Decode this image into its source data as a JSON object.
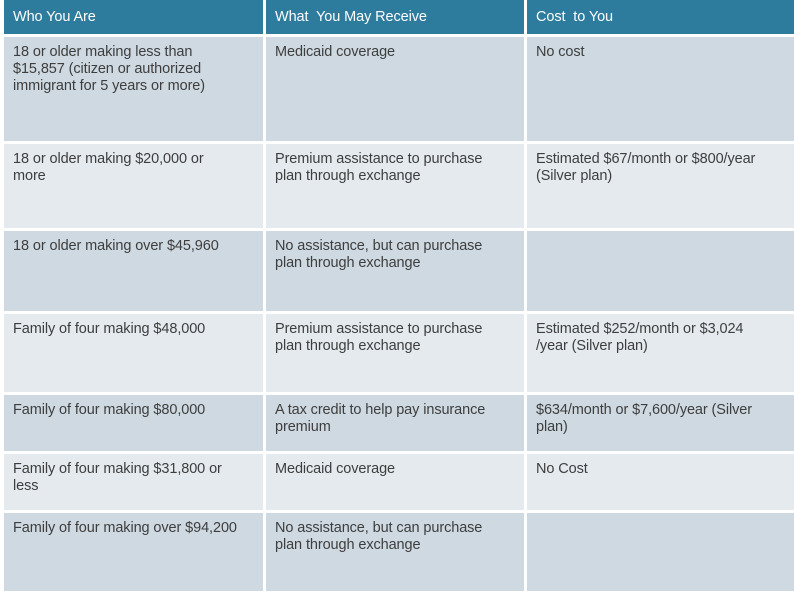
{
  "table": {
    "columns": [
      {
        "label": "Who You Are"
      },
      {
        "label": "What  You May Receive"
      },
      {
        "label": "Cost  to You"
      }
    ],
    "rows": [
      {
        "who": "18 or older making less than $15,857 (citizen or authorized immigrant for 5 years or more)",
        "receive": "Medicaid coverage",
        "cost": "No cost"
      },
      {
        "who": "18 or older making $20,000 or more",
        "receive": "Premium assistance to purchase plan through exchange",
        "cost": "Estimated $67/month or $800/year (Silver plan)"
      },
      {
        "who": "18 or older making over $45,960",
        "receive": "No assistance, but can purchase plan through exchange",
        "cost": ""
      },
      {
        "who": "Family of four making $48,000",
        "receive": "Premium assistance to purchase plan through exchange",
        "cost": "Estimated $252/month or $3,024 /year (Silver plan)"
      },
      {
        "who": "Family of four making $80,000",
        "receive": "A tax credit to help pay insurance premium",
        "cost": "$634/month or $7,600/year (Silver plan)"
      },
      {
        "who": "Family of four making $31,800 or less",
        "receive": "Medicaid coverage",
        "cost": "No Cost"
      },
      {
        "who": "Family of four making over $94,200",
        "receive": "No assistance, but can purchase plan through exchange",
        "cost": ""
      }
    ]
  },
  "colors": {
    "header_bg": "#2E7C9D",
    "header_text": "#FDFDFD",
    "row_dark": "#CED9E1",
    "row_light": "#E4EAEE",
    "body_text": "#3E3E3E",
    "gap": "#FFFFFF"
  }
}
